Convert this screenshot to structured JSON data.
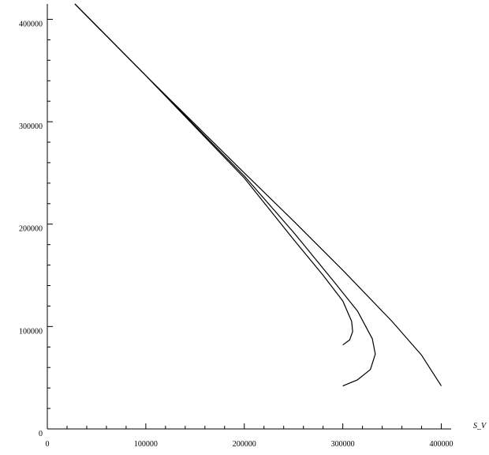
{
  "chart_data": {
    "type": "line",
    "x_label": "S_V",
    "xlim": [
      0,
      410000
    ],
    "ylim": [
      0,
      415000
    ],
    "xticks": [
      0,
      100000,
      200000,
      300000,
      400000
    ],
    "yticks": [
      0,
      100000,
      200000,
      300000,
      400000
    ],
    "x_minor_ticks": [
      20000,
      40000,
      60000,
      80000,
      120000,
      140000,
      160000,
      180000,
      220000,
      240000,
      260000,
      280000,
      320000,
      340000,
      360000,
      380000
    ],
    "y_minor_ticks": [
      20000,
      40000,
      60000,
      80000,
      120000,
      140000,
      160000,
      180000,
      220000,
      240000,
      260000,
      280000,
      320000,
      340000,
      360000,
      380000
    ],
    "series": [
      {
        "color": "#000000",
        "x": [
          28000,
          100000,
          200000,
          250000,
          300000,
          350000,
          380000,
          400000
        ],
        "values": [
          415000,
          345000,
          250000,
          203000,
          155000,
          105000,
          72000,
          42000
        ]
      },
      {
        "color": "#000000",
        "x": [
          28000,
          100000,
          200000,
          250000,
          280000,
          300000,
          309000,
          310000,
          307000,
          300000
        ],
        "values": [
          415000,
          345000,
          245000,
          185000,
          150000,
          125000,
          105000,
          95000,
          87000,
          82000
        ]
      },
      {
        "color": "#000000",
        "x": [
          28000,
          100000,
          200000,
          250000,
          290000,
          315000,
          330000,
          333000,
          328000,
          315000,
          300000
        ],
        "values": [
          415000,
          345000,
          247000,
          192000,
          145000,
          115000,
          88000,
          73000,
          58000,
          48000,
          42000
        ]
      }
    ]
  }
}
